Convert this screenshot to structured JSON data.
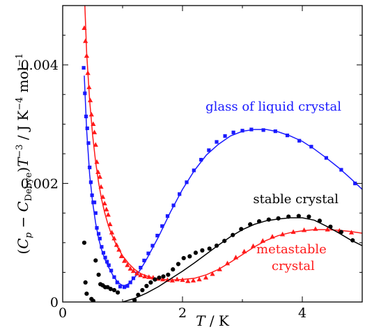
{
  "chart_data": {
    "type": "scatter",
    "xlabel": "T / K",
    "ylabel": "(Cp − CDebye)T⁻³ / J K⁻⁴ mol⁻¹",
    "xlim": [
      0,
      5
    ],
    "ylim": [
      0,
      0.005
    ],
    "x_ticks": [
      0,
      2,
      4
    ],
    "x_tick_labels": [
      "0",
      "2",
      "4"
    ],
    "y_ticks": [
      0,
      0.002,
      0.004
    ],
    "y_tick_labels": [
      "0",
      "0.002",
      "0.004"
    ],
    "grid": false,
    "legend": "none",
    "annotations": [
      {
        "text": "glass of liquid crystal",
        "color": "#1a1aff"
      },
      {
        "text": "stable crystal",
        "color": "#000000"
      },
      {
        "text": "metastable",
        "color": "#ff1a1a"
      },
      {
        "text": "crystal",
        "color": "#ff1a1a"
      }
    ],
    "series": [
      {
        "color": "#1a1aff",
        "marker": "square",
        "points": [
          [
            0.35,
            0.00395
          ],
          [
            0.37,
            0.00352
          ],
          [
            0.39,
            0.00313
          ],
          [
            0.41,
            0.00293
          ],
          [
            0.43,
            0.00268
          ],
          [
            0.45,
            0.00227
          ],
          [
            0.47,
            0.00202
          ],
          [
            0.49,
            0.0018
          ],
          [
            0.51,
            0.00168
          ],
          [
            0.53,
            0.00168
          ],
          [
            0.55,
            0.0015
          ],
          [
            0.57,
            0.00125
          ],
          [
            0.6,
            0.00115
          ],
          [
            0.62,
            0.00107
          ],
          [
            0.65,
            0.00093
          ],
          [
            0.68,
            0.00083
          ],
          [
            0.71,
            0.00075
          ],
          [
            0.74,
            0.00068
          ],
          [
            0.77,
            0.00062
          ],
          [
            0.81,
            0.00053
          ],
          [
            0.86,
            0.00042
          ],
          [
            0.91,
            0.00033
          ],
          [
            0.96,
            0.00026
          ],
          [
            1.03,
            0.00025
          ],
          [
            1.08,
            0.00027
          ],
          [
            1.13,
            0.00033
          ],
          [
            1.18,
            0.0004
          ],
          [
            1.24,
            0.00048
          ],
          [
            1.3,
            0.00058
          ],
          [
            1.36,
            0.0007
          ],
          [
            1.43,
            0.00082
          ],
          [
            1.5,
            0.00095
          ],
          [
            1.58,
            0.00112
          ],
          [
            1.66,
            0.00128
          ],
          [
            1.75,
            0.00145
          ],
          [
            1.85,
            0.00163
          ],
          [
            1.95,
            0.00182
          ],
          [
            2.07,
            0.00202
          ],
          [
            2.19,
            0.00222
          ],
          [
            2.31,
            0.0024
          ],
          [
            2.44,
            0.00256
          ],
          [
            2.57,
            0.0027
          ],
          [
            2.71,
            0.0028
          ],
          [
            2.85,
            0.00286
          ],
          [
            3.0,
            0.00289
          ],
          [
            3.15,
            0.00291
          ],
          [
            3.35,
            0.0029
          ],
          [
            3.55,
            0.00288
          ],
          [
            3.75,
            0.00281
          ],
          [
            3.95,
            0.00272
          ],
          [
            4.15,
            0.00262
          ],
          [
            4.4,
            0.00243
          ],
          [
            4.65,
            0.00223
          ],
          [
            4.88,
            0.002
          ]
        ],
        "curve": [
          [
            0.36,
            0.00382
          ],
          [
            0.4,
            0.0029
          ],
          [
            0.45,
            0.00215
          ],
          [
            0.5,
            0.00168
          ],
          [
            0.55,
            0.00133
          ],
          [
            0.6,
            0.00107
          ],
          [
            0.65,
            0.00088
          ],
          [
            0.7,
            0.00073
          ],
          [
            0.75,
            0.00062
          ],
          [
            0.8,
            0.00052
          ],
          [
            0.85,
            0.00043
          ],
          [
            0.9,
            0.00036
          ],
          [
            0.95,
            0.00031
          ],
          [
            1.0,
            0.00028
          ],
          [
            1.05,
            0.00028
          ],
          [
            1.1,
            0.00031
          ],
          [
            1.2,
            0.00041
          ],
          [
            1.3,
            0.00055
          ],
          [
            1.4,
            0.00072
          ],
          [
            1.6,
            0.0011
          ],
          [
            1.8,
            0.00152
          ],
          [
            2.0,
            0.0019
          ],
          [
            2.2,
            0.00222
          ],
          [
            2.4,
            0.00248
          ],
          [
            2.6,
            0.00266
          ],
          [
            2.8,
            0.0028
          ],
          [
            3.0,
            0.00288
          ],
          [
            3.2,
            0.00291
          ],
          [
            3.4,
            0.00291
          ],
          [
            3.6,
            0.00287
          ],
          [
            3.8,
            0.0028
          ],
          [
            4.0,
            0.00271
          ],
          [
            4.2,
            0.00258
          ],
          [
            4.4,
            0.00243
          ],
          [
            4.6,
            0.00227
          ],
          [
            4.8,
            0.00209
          ],
          [
            5.0,
            0.0019
          ]
        ]
      },
      {
        "color": "#ff1a1a",
        "marker": "triangle",
        "points": [
          [
            0.36,
            0.00462
          ],
          [
            0.38,
            0.0044
          ],
          [
            0.4,
            0.00415
          ],
          [
            0.42,
            0.00386
          ],
          [
            0.44,
            0.00362
          ],
          [
            0.46,
            0.0034
          ],
          [
            0.48,
            0.00316
          ],
          [
            0.51,
            0.003
          ],
          [
            0.53,
            0.00286
          ],
          [
            0.55,
            0.00265
          ],
          [
            0.57,
            0.00236
          ],
          [
            0.59,
            0.00219
          ],
          [
            0.62,
            0.00211
          ],
          [
            0.64,
            0.00194
          ],
          [
            0.67,
            0.00177
          ],
          [
            0.7,
            0.00166
          ],
          [
            0.73,
            0.00156
          ],
          [
            0.76,
            0.00147
          ],
          [
            0.79,
            0.00131
          ],
          [
            0.82,
            0.00117
          ],
          [
            0.86,
            0.00107
          ],
          [
            0.9,
            0.00096
          ],
          [
            0.94,
            0.00088
          ],
          [
            0.98,
            0.00077
          ],
          [
            1.03,
            0.00069
          ],
          [
            1.08,
            0.00062
          ],
          [
            1.13,
            0.00056
          ],
          [
            1.18,
            0.00052
          ],
          [
            1.24,
            0.00048
          ],
          [
            1.3,
            0.00045
          ],
          [
            1.37,
            0.00043
          ],
          [
            1.44,
            0.00042
          ],
          [
            1.51,
            0.00041
          ],
          [
            1.59,
            0.00039
          ],
          [
            1.67,
            0.00038
          ],
          [
            1.75,
            0.00037
          ],
          [
            1.83,
            0.00036
          ],
          [
            1.91,
            0.00038
          ],
          [
            2.0,
            0.00037
          ],
          [
            2.09,
            0.00035
          ],
          [
            2.18,
            0.00036
          ],
          [
            2.28,
            0.00038
          ],
          [
            2.39,
            0.00041
          ],
          [
            2.5,
            0.00047
          ],
          [
            2.62,
            0.00055
          ],
          [
            2.75,
            0.00065
          ],
          [
            2.89,
            0.00075
          ],
          [
            3.03,
            0.00085
          ],
          [
            3.18,
            0.00094
          ],
          [
            3.34,
            0.00103
          ],
          [
            3.5,
            0.0011
          ],
          [
            3.67,
            0.00114
          ],
          [
            3.85,
            0.00118
          ],
          [
            4.03,
            0.00121
          ],
          [
            4.22,
            0.00123
          ],
          [
            4.42,
            0.00122
          ],
          [
            4.62,
            0.0012
          ],
          [
            4.82,
            0.00117
          ]
        ],
        "curve": [
          [
            0.37,
            0.005
          ],
          [
            0.4,
            0.0042
          ],
          [
            0.45,
            0.0034
          ],
          [
            0.5,
            0.00281
          ],
          [
            0.55,
            0.00236
          ],
          [
            0.6,
            0.00201
          ],
          [
            0.65,
            0.00173
          ],
          [
            0.7,
            0.00151
          ],
          [
            0.75,
            0.00133
          ],
          [
            0.8,
            0.00118
          ],
          [
            0.9,
            0.00095
          ],
          [
            1.0,
            0.00078
          ],
          [
            1.1,
            0.00065
          ],
          [
            1.2,
            0.00055
          ],
          [
            1.3,
            0.00048
          ],
          [
            1.4,
            0.00044
          ],
          [
            1.5,
            0.00041
          ],
          [
            1.6,
            0.00039
          ],
          [
            1.8,
            0.00037
          ],
          [
            2.0,
            0.00038
          ],
          [
            2.2,
            0.0004
          ],
          [
            2.4,
            0.00046
          ],
          [
            2.6,
            0.00055
          ],
          [
            2.8,
            0.00067
          ],
          [
            3.0,
            0.0008
          ],
          [
            3.2,
            0.00093
          ],
          [
            3.4,
            0.00104
          ],
          [
            3.6,
            0.00112
          ],
          [
            3.8,
            0.00117
          ],
          [
            4.0,
            0.0012
          ],
          [
            4.2,
            0.00122
          ],
          [
            4.4,
            0.00122
          ],
          [
            4.6,
            0.00121
          ],
          [
            4.8,
            0.00119
          ],
          [
            5.0,
            0.00116
          ]
        ]
      },
      {
        "color": "#000000",
        "marker": "circle",
        "points": [
          [
            0.36,
            0.001
          ],
          [
            0.38,
            0.00033
          ],
          [
            0.4,
            0.00014
          ],
          [
            0.48,
            5e-05
          ],
          [
            0.51,
            2e-05
          ],
          [
            0.55,
            0.0007
          ],
          [
            0.6,
            0.00046
          ],
          [
            0.63,
            0.0003
          ],
          [
            0.67,
            0.00028
          ],
          [
            0.71,
            0.00025
          ],
          [
            0.75,
            0.00025
          ],
          [
            0.8,
            0.00022
          ],
          [
            0.86,
            0.0002
          ],
          [
            0.92,
            0.00016
          ],
          [
            1.2,
            3e-05
          ],
          [
            1.26,
            0.00012
          ],
          [
            1.33,
            0.0002
          ],
          [
            1.4,
            0.00027
          ],
          [
            1.47,
            0.00033
          ],
          [
            1.54,
            0.00038
          ],
          [
            1.61,
            0.00041
          ],
          [
            1.68,
            0.00043
          ],
          [
            1.76,
            0.00046
          ],
          [
            1.84,
            0.00055
          ],
          [
            1.93,
            0.00064
          ],
          [
            2.02,
            0.00074
          ],
          [
            2.12,
            0.00077
          ],
          [
            2.22,
            0.00083
          ],
          [
            2.33,
            0.00087
          ],
          [
            2.45,
            0.0009
          ],
          [
            2.57,
            0.00095
          ],
          [
            2.7,
            0.00103
          ],
          [
            2.84,
            0.00113
          ],
          [
            2.98,
            0.00123
          ],
          [
            3.13,
            0.00131
          ],
          [
            3.28,
            0.00136
          ],
          [
            3.44,
            0.00139
          ],
          [
            3.6,
            0.00141
          ],
          [
            3.77,
            0.00144
          ],
          [
            3.94,
            0.00145
          ],
          [
            4.11,
            0.00144
          ],
          [
            4.29,
            0.00137
          ],
          [
            4.47,
            0.00127
          ],
          [
            4.65,
            0.00118
          ],
          [
            4.84,
            0.00104
          ]
        ],
        "curve": [
          [
            1.0,
            0.0
          ],
          [
            1.2,
            6e-05
          ],
          [
            1.4,
            0.00015
          ],
          [
            1.6,
            0.00026
          ],
          [
            1.8,
            0.00039
          ],
          [
            2.0,
            0.00052
          ],
          [
            2.2,
            0.00066
          ],
          [
            2.4,
            0.00081
          ],
          [
            2.6,
            0.00096
          ],
          [
            2.8,
            0.0011
          ],
          [
            3.0,
            0.00122
          ],
          [
            3.2,
            0.00131
          ],
          [
            3.4,
            0.00137
          ],
          [
            3.6,
            0.0014
          ],
          [
            3.8,
            0.00142
          ],
          [
            4.0,
            0.00142
          ],
          [
            4.2,
            0.00138
          ],
          [
            4.4,
            0.00128
          ],
          [
            4.6,
            0.00117
          ],
          [
            4.8,
            0.00105
          ],
          [
            5.0,
            0.00095
          ]
        ]
      }
    ]
  }
}
